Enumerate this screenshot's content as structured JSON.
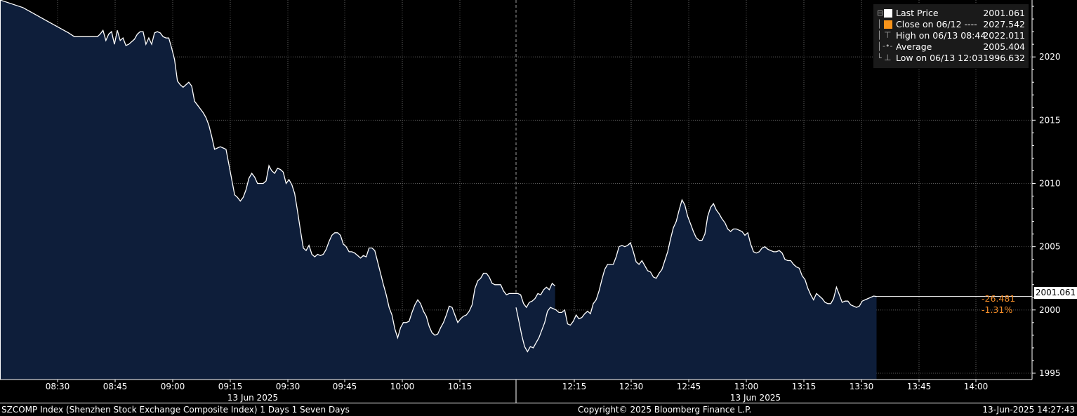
{
  "chart_data": {
    "type": "area",
    "y_axis": {
      "range": [
        1994.5,
        2024.5
      ],
      "ticks": [
        1995,
        2000,
        2005,
        2010,
        2015,
        2020
      ],
      "position": "right"
    },
    "x_axis": {
      "session1_ticks": [
        "08:30",
        "08:45",
        "09:00",
        "09:15",
        "09:30",
        "09:45",
        "10:00",
        "10:15"
      ],
      "session2_ticks": [
        "12:15",
        "12:30",
        "12:45",
        "13:00",
        "13:15",
        "13:30",
        "13:45",
        "14:00"
      ],
      "date_labels": [
        "13 Jun 2025",
        "13 Jun 2025"
      ]
    },
    "grid": true,
    "legend_position": "top-right",
    "series": [
      {
        "name": "Last Price",
        "color": "#ffffff",
        "fill": "#0e1e3a",
        "session1": [
          [
            0,
            2024.5
          ],
          [
            4,
            2023.9
          ],
          [
            6,
            2023.4
          ],
          [
            8,
            2022.9
          ],
          [
            10,
            2022.4
          ],
          [
            12,
            2021.9
          ],
          [
            13,
            2021.6
          ],
          [
            15,
            2021.6
          ],
          [
            17,
            2021.6
          ],
          [
            17.5,
            2021.8
          ],
          [
            18,
            2022.1
          ],
          [
            18.5,
            2021.3
          ],
          [
            19,
            2021.8
          ],
          [
            19.5,
            2022.0
          ],
          [
            20,
            2021.0
          ],
          [
            20.5,
            2022.1
          ],
          [
            21,
            2021.3
          ],
          [
            21.5,
            2021.5
          ],
          [
            22,
            2020.9
          ],
          [
            22.5,
            2021.0
          ],
          [
            23,
            2021.2
          ],
          [
            23.5,
            2021.4
          ],
          [
            24,
            2021.8
          ],
          [
            24.5,
            2022.0
          ],
          [
            25,
            2022.0
          ],
          [
            25.5,
            2021.0
          ],
          [
            26,
            2021.5
          ],
          [
            26.5,
            2021.0
          ],
          [
            27,
            2021.9
          ],
          [
            27.5,
            2022.0
          ],
          [
            28,
            2021.9
          ],
          [
            28.5,
            2021.6
          ],
          [
            29,
            2021.5
          ],
          [
            29.5,
            2021.5
          ],
          [
            30,
            2020.7
          ],
          [
            30.5,
            2019.8
          ],
          [
            31,
            2018.1
          ],
          [
            31.5,
            2017.8
          ],
          [
            32,
            2017.6
          ],
          [
            32.5,
            2017.8
          ],
          [
            33,
            2018.0
          ],
          [
            33.5,
            2017.7
          ],
          [
            34,
            2016.5
          ],
          [
            34.5,
            2016.2
          ],
          [
            35,
            2015.9
          ],
          [
            35.5,
            2015.6
          ],
          [
            36,
            2015.2
          ],
          [
            36.5,
            2014.6
          ],
          [
            37,
            2013.7
          ],
          [
            37.5,
            2012.7
          ],
          [
            38,
            2012.8
          ],
          [
            38.5,
            2012.9
          ],
          [
            39,
            2012.8
          ],
          [
            39.5,
            2012.7
          ],
          [
            40,
            2011.5
          ],
          [
            40.5,
            2010.3
          ],
          [
            41,
            2009.1
          ],
          [
            41.5,
            2008.9
          ],
          [
            42,
            2008.6
          ],
          [
            42.5,
            2008.9
          ],
          [
            43,
            2009.5
          ],
          [
            43.5,
            2010.4
          ],
          [
            44,
            2010.8
          ],
          [
            44.5,
            2010.5
          ],
          [
            45,
            2010.0
          ],
          [
            45.5,
            2010.0
          ],
          [
            46,
            2010.0
          ],
          [
            46.5,
            2010.2
          ],
          [
            47,
            2011.4
          ],
          [
            47.5,
            2011.0
          ],
          [
            48,
            2010.8
          ],
          [
            48.5,
            2011.2
          ],
          [
            49,
            2011.1
          ],
          [
            49.5,
            2010.9
          ],
          [
            50,
            2010.0
          ],
          [
            50.5,
            2010.3
          ],
          [
            51,
            2009.9
          ],
          [
            51.5,
            2009.2
          ],
          [
            52,
            2007.8
          ],
          [
            52.5,
            2006.3
          ],
          [
            53,
            2004.9
          ],
          [
            53.5,
            2004.7
          ],
          [
            54,
            2005.1
          ],
          [
            54.5,
            2004.4
          ],
          [
            55,
            2004.2
          ],
          [
            55.5,
            2004.4
          ],
          [
            56,
            2004.3
          ],
          [
            56.5,
            2004.4
          ],
          [
            57,
            2004.8
          ],
          [
            57.5,
            2005.4
          ],
          [
            58,
            2005.9
          ],
          [
            58.5,
            2006.1
          ],
          [
            59,
            2006.1
          ],
          [
            59.5,
            2005.9
          ],
          [
            60,
            2005.2
          ],
          [
            60.5,
            2005.0
          ],
          [
            61,
            2004.6
          ],
          [
            61.5,
            2004.6
          ],
          [
            62,
            2004.5
          ],
          [
            62.5,
            2004.3
          ],
          [
            63,
            2004.1
          ],
          [
            63.5,
            2004.3
          ],
          [
            64,
            2004.2
          ],
          [
            64.5,
            2004.9
          ],
          [
            65,
            2004.9
          ],
          [
            65.5,
            2004.7
          ],
          [
            66,
            2003.8
          ],
          [
            66.5,
            2002.9
          ],
          [
            67,
            2002.0
          ],
          [
            67.5,
            2001.2
          ],
          [
            68,
            2000.2
          ],
          [
            68.5,
            1999.6
          ],
          [
            69,
            1998.5
          ],
          [
            69.5,
            1997.8
          ],
          [
            70,
            1998.6
          ],
          [
            70.5,
            1999.0
          ],
          [
            71,
            1999.0
          ],
          [
            71.5,
            1999.1
          ],
          [
            72,
            1999.8
          ],
          [
            72.5,
            2000.4
          ],
          [
            73,
            2000.8
          ],
          [
            73.5,
            2000.5
          ],
          [
            74,
            1999.9
          ],
          [
            74.5,
            1999.5
          ],
          [
            75,
            1998.7
          ],
          [
            75.5,
            1998.2
          ],
          [
            76,
            1998.0
          ],
          [
            76.5,
            1998.1
          ],
          [
            77,
            1998.6
          ],
          [
            77.5,
            1999.0
          ],
          [
            78,
            1999.6
          ],
          [
            78.5,
            2000.3
          ],
          [
            79,
            2000.2
          ],
          [
            79.5,
            1999.6
          ],
          [
            80,
            1999.0
          ],
          [
            80.5,
            1999.3
          ],
          [
            81,
            1999.5
          ],
          [
            81.5,
            1999.6
          ],
          [
            82,
            1999.9
          ],
          [
            82.5,
            2000.4
          ],
          [
            83,
            2001.7
          ],
          [
            83.5,
            2002.3
          ],
          [
            84,
            2002.5
          ],
          [
            84.5,
            2002.9
          ],
          [
            85,
            2002.9
          ],
          [
            85.5,
            2002.6
          ],
          [
            86,
            2002.1
          ],
          [
            86.5,
            2002.0
          ],
          [
            87,
            2002.0
          ],
          [
            87.5,
            2002.0
          ],
          [
            88,
            2001.5
          ],
          [
            88.5,
            2001.2
          ],
          [
            89,
            2001.3
          ],
          [
            89.5,
            2001.3
          ],
          [
            90,
            2001.3
          ],
          [
            90.5,
            2001.3
          ],
          [
            91,
            2001.2
          ],
          [
            91.5,
            2000.5
          ],
          [
            92,
            2000.2
          ],
          [
            92.5,
            2000.6
          ],
          [
            93,
            2000.7
          ],
          [
            93.5,
            2000.9
          ],
          [
            94,
            2001.3
          ],
          [
            94.5,
            2001.2
          ],
          [
            95,
            2001.6
          ],
          [
            95.5,
            2001.8
          ],
          [
            96,
            2001.6
          ],
          [
            96.5,
            2002.1
          ],
          [
            97,
            2001.9
          ]
        ],
        "session2": [
          [
            0,
            2000.2
          ],
          [
            0.5,
            1999.1
          ],
          [
            1,
            1998.0
          ],
          [
            1.5,
            1997.1
          ],
          [
            2,
            1996.7
          ],
          [
            2.5,
            1997.1
          ],
          [
            3,
            1997.0
          ],
          [
            3.5,
            1997.4
          ],
          [
            4,
            1997.8
          ],
          [
            4.5,
            1998.4
          ],
          [
            5,
            1999.0
          ],
          [
            5.5,
            1999.9
          ],
          [
            6,
            2000.2
          ],
          [
            6.5,
            2000.1
          ],
          [
            7,
            2000.0
          ],
          [
            7.5,
            1999.8
          ],
          [
            8,
            1999.8
          ],
          [
            8.5,
            2000.0
          ],
          [
            9,
            1998.9
          ],
          [
            9.5,
            1998.8
          ],
          [
            10,
            1999.1
          ],
          [
            10.5,
            1999.6
          ],
          [
            11,
            1999.3
          ],
          [
            11.5,
            1999.4
          ],
          [
            12,
            1999.7
          ],
          [
            12.5,
            1999.9
          ],
          [
            13,
            1999.7
          ],
          [
            13.5,
            2000.5
          ],
          [
            14,
            2000.8
          ],
          [
            14.5,
            2001.5
          ],
          [
            15,
            2002.4
          ],
          [
            15.5,
            2003.2
          ],
          [
            16,
            2003.6
          ],
          [
            16.5,
            2003.6
          ],
          [
            17,
            2003.6
          ],
          [
            17.5,
            2004.2
          ],
          [
            18,
            2005.0
          ],
          [
            18.5,
            2005.1
          ],
          [
            19,
            2005.0
          ],
          [
            19.5,
            2005.1
          ],
          [
            20,
            2005.3
          ],
          [
            20.5,
            2004.6
          ],
          [
            21,
            2003.8
          ],
          [
            21.5,
            2003.6
          ],
          [
            22,
            2003.9
          ],
          [
            22.5,
            2003.5
          ],
          [
            23,
            2003.1
          ],
          [
            23.5,
            2003.0
          ],
          [
            24,
            2002.6
          ],
          [
            24.5,
            2002.5
          ],
          [
            25,
            2002.9
          ],
          [
            25.5,
            2003.2
          ],
          [
            26,
            2003.9
          ],
          [
            26.5,
            2004.6
          ],
          [
            27,
            2005.6
          ],
          [
            27.5,
            2006.5
          ],
          [
            28,
            2007.0
          ],
          [
            28.5,
            2007.9
          ],
          [
            29,
            2008.7
          ],
          [
            29.5,
            2008.3
          ],
          [
            30,
            2007.4
          ],
          [
            30.5,
            2006.8
          ],
          [
            31,
            2006.2
          ],
          [
            31.5,
            2005.7
          ],
          [
            32,
            2005.5
          ],
          [
            32.5,
            2005.5
          ],
          [
            33,
            2006.0
          ],
          [
            33.5,
            2007.4
          ],
          [
            34,
            2008.1
          ],
          [
            34.5,
            2008.4
          ],
          [
            35,
            2007.9
          ],
          [
            35.5,
            2007.6
          ],
          [
            36,
            2007.2
          ],
          [
            36.5,
            2006.9
          ],
          [
            37,
            2006.4
          ],
          [
            37.5,
            2006.2
          ],
          [
            38,
            2006.4
          ],
          [
            38.5,
            2006.4
          ],
          [
            39,
            2006.3
          ],
          [
            39.5,
            2006.2
          ],
          [
            40,
            2005.9
          ],
          [
            40.5,
            2006.1
          ],
          [
            41,
            2005.2
          ],
          [
            41.5,
            2004.6
          ],
          [
            42,
            2004.5
          ],
          [
            42.5,
            2004.6
          ],
          [
            43,
            2004.9
          ],
          [
            43.5,
            2005.0
          ],
          [
            44,
            2004.8
          ],
          [
            44.5,
            2004.7
          ],
          [
            45,
            2004.6
          ],
          [
            45.5,
            2004.6
          ],
          [
            46,
            2004.7
          ],
          [
            46.5,
            2004.5
          ],
          [
            47,
            2004.0
          ],
          [
            47.5,
            2003.9
          ],
          [
            48,
            2003.9
          ],
          [
            48.5,
            2003.6
          ],
          [
            49,
            2003.4
          ],
          [
            49.5,
            2003.3
          ],
          [
            50,
            2002.7
          ],
          [
            50.5,
            2002.4
          ],
          [
            51,
            2001.7
          ],
          [
            51.5,
            2001.2
          ],
          [
            52,
            2000.8
          ],
          [
            52.5,
            2001.3
          ],
          [
            53,
            2001.1
          ],
          [
            53.5,
            2000.9
          ],
          [
            54,
            2000.6
          ],
          [
            54.5,
            2000.5
          ],
          [
            55,
            2000.5
          ],
          [
            55.5,
            2000.9
          ],
          [
            56,
            2001.8
          ],
          [
            56.5,
            2001.2
          ],
          [
            57,
            2000.6
          ],
          [
            57.5,
            2000.7
          ],
          [
            58,
            2000.7
          ],
          [
            58.5,
            2000.4
          ],
          [
            59,
            2000.3
          ],
          [
            59.5,
            2000.2
          ],
          [
            60,
            2000.3
          ],
          [
            60.5,
            2000.7
          ],
          [
            61,
            2000.8
          ],
          [
            61.5,
            2000.9
          ],
          [
            62,
            2001.0
          ],
          [
            62.5,
            2001.1
          ],
          [
            63,
            2001.061
          ]
        ]
      }
    ]
  },
  "legend": {
    "rows": [
      {
        "label": "Last Price",
        "value": "2001.061",
        "marker": "square-white"
      },
      {
        "label": "Close on 06/12 ----",
        "value": "2027.542",
        "marker": "square-orange"
      },
      {
        "label": "High on 06/13 08:44",
        "value": "2022.011",
        "marker": "high"
      },
      {
        "label": "Average",
        "value": "2005.404",
        "marker": "average"
      },
      {
        "label": "Low on 06/13 12:03",
        "value": "1996.632",
        "marker": "low"
      }
    ]
  },
  "last_price_tag": "2001.061",
  "net_change": "-26.481",
  "pct_change": "-1.31%",
  "footer": {
    "left": "SZCOMP Index (Shenzhen Stock Exchange Composite Index) 1 Days 1 Seven Days",
    "center": "Copyright© 2025 Bloomberg Finance L.P.",
    "right": "13-Jun-2025 14:27:43"
  },
  "colors": {
    "background": "#000000",
    "area_fill": "#0e1e3a",
    "line": "#ffffff",
    "change": "#f28c28",
    "grid": "#5a5a5a"
  }
}
